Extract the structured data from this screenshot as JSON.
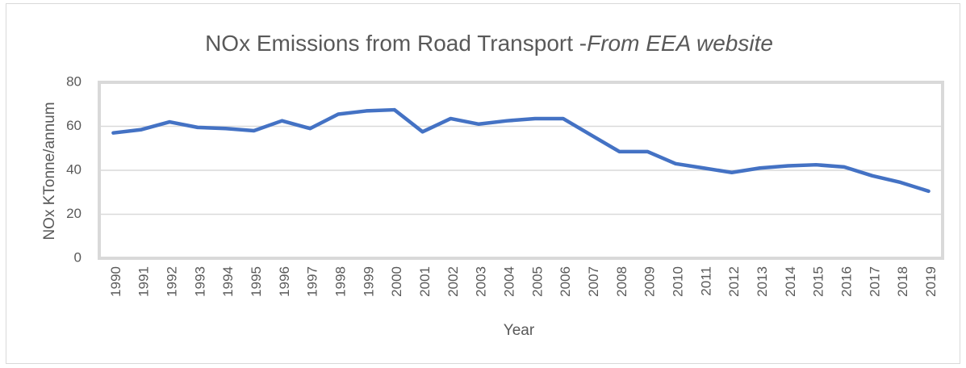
{
  "chart_data": {
    "type": "line",
    "title": [
      "NOx Emissions from Road Transport -",
      "From EEA website"
    ],
    "xlabel": "Year",
    "ylabel": "NOx KTonne/annum",
    "categories": [
      "1990",
      "1991",
      "1992",
      "1993",
      "1994",
      "1995",
      "1996",
      "1997",
      "1998",
      "1999",
      "2000",
      "2001",
      "2002",
      "2003",
      "2004",
      "2005",
      "2006",
      "2007",
      "2008",
      "2009",
      "2010",
      "2011",
      "2012",
      "2013",
      "2014",
      "2015",
      "2016",
      "2017",
      "2018",
      "2019"
    ],
    "series": [
      {
        "name": "NOx",
        "color": "#4472c4",
        "values": [
          57,
          58.5,
          62,
          59.5,
          59,
          58,
          62.5,
          59,
          65.5,
          67,
          67.5,
          57.5,
          63.5,
          61,
          62.5,
          63.5,
          63.5,
          56,
          48.5,
          48.5,
          43,
          41,
          39,
          41,
          42,
          42.5,
          41.5,
          37.5,
          34.5,
          30.5
        ]
      }
    ],
    "ylim": [
      0,
      80
    ],
    "yticks": [
      0,
      20,
      40,
      60,
      80
    ],
    "grid": true
  }
}
